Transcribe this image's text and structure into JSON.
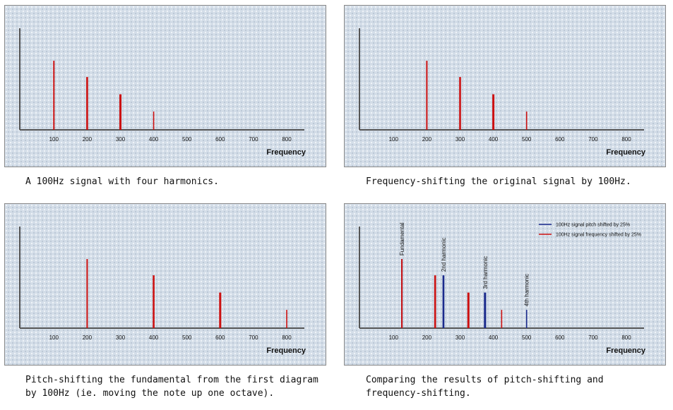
{
  "colors": {
    "red": "#cc1111",
    "blue": "#1a2a8c"
  },
  "captions": [
    "A 100Hz signal with four harmonics.",
    "Frequency-shifting the original signal by 100Hz.",
    "Pitch-shifting the fundamental from the first diagram by 100Hz (ie. moving the note up one octave).",
    "Comparing the results of pitch-shifting and frequency-shifting."
  ],
  "chart_data": [
    {
      "type": "bar",
      "xlabel": "Frequency",
      "xticks": [
        100,
        200,
        300,
        400,
        500,
        600,
        700,
        800
      ],
      "xlim": [
        0,
        850
      ],
      "ylim": [
        0,
        1
      ],
      "series": [
        {
          "color": "red",
          "x": [
            100,
            200,
            300,
            400
          ],
          "values": [
            0.68,
            0.52,
            0.35,
            0.18
          ]
        }
      ]
    },
    {
      "type": "bar",
      "xlabel": "Frequency",
      "xticks": [
        100,
        200,
        300,
        400,
        500,
        600,
        700,
        800
      ],
      "xlim": [
        0,
        850
      ],
      "ylim": [
        0,
        1
      ],
      "series": [
        {
          "color": "red",
          "x": [
            200,
            300,
            400,
            500
          ],
          "values": [
            0.68,
            0.52,
            0.35,
            0.18
          ]
        }
      ]
    },
    {
      "type": "bar",
      "xlabel": "Frequency",
      "xticks": [
        100,
        200,
        300,
        400,
        500,
        600,
        700,
        800
      ],
      "xlim": [
        0,
        850
      ],
      "ylim": [
        0,
        1
      ],
      "series": [
        {
          "color": "red",
          "x": [
            200,
            400,
            600,
            800
          ],
          "values": [
            0.68,
            0.52,
            0.35,
            0.18
          ]
        }
      ]
    },
    {
      "type": "bar",
      "xlabel": "Frequency",
      "xticks": [
        100,
        200,
        300,
        400,
        500,
        600,
        700,
        800
      ],
      "xlim": [
        0,
        850
      ],
      "ylim": [
        0,
        1
      ],
      "legend_position": "top-right",
      "series": [
        {
          "name": "100Hz signal pitch shifted by 25%",
          "color": "blue",
          "x": [
            125,
            250,
            375,
            500
          ],
          "values": [
            0.68,
            0.52,
            0.35,
            0.18
          ]
        },
        {
          "name": "100Hz signal frequency shifted by 25%",
          "color": "red",
          "x": [
            125,
            225,
            325,
            425
          ],
          "values": [
            0.68,
            0.52,
            0.35,
            0.18
          ]
        }
      ],
      "annotations": [
        {
          "text": "Fundamental",
          "x": 125,
          "y": 0.68
        },
        {
          "text": "2nd harmonic",
          "x": 250,
          "y": 0.52
        },
        {
          "text": "3rd harmonic",
          "x": 375,
          "y": 0.35
        },
        {
          "text": "4th harmonic",
          "x": 500,
          "y": 0.18
        }
      ]
    }
  ]
}
